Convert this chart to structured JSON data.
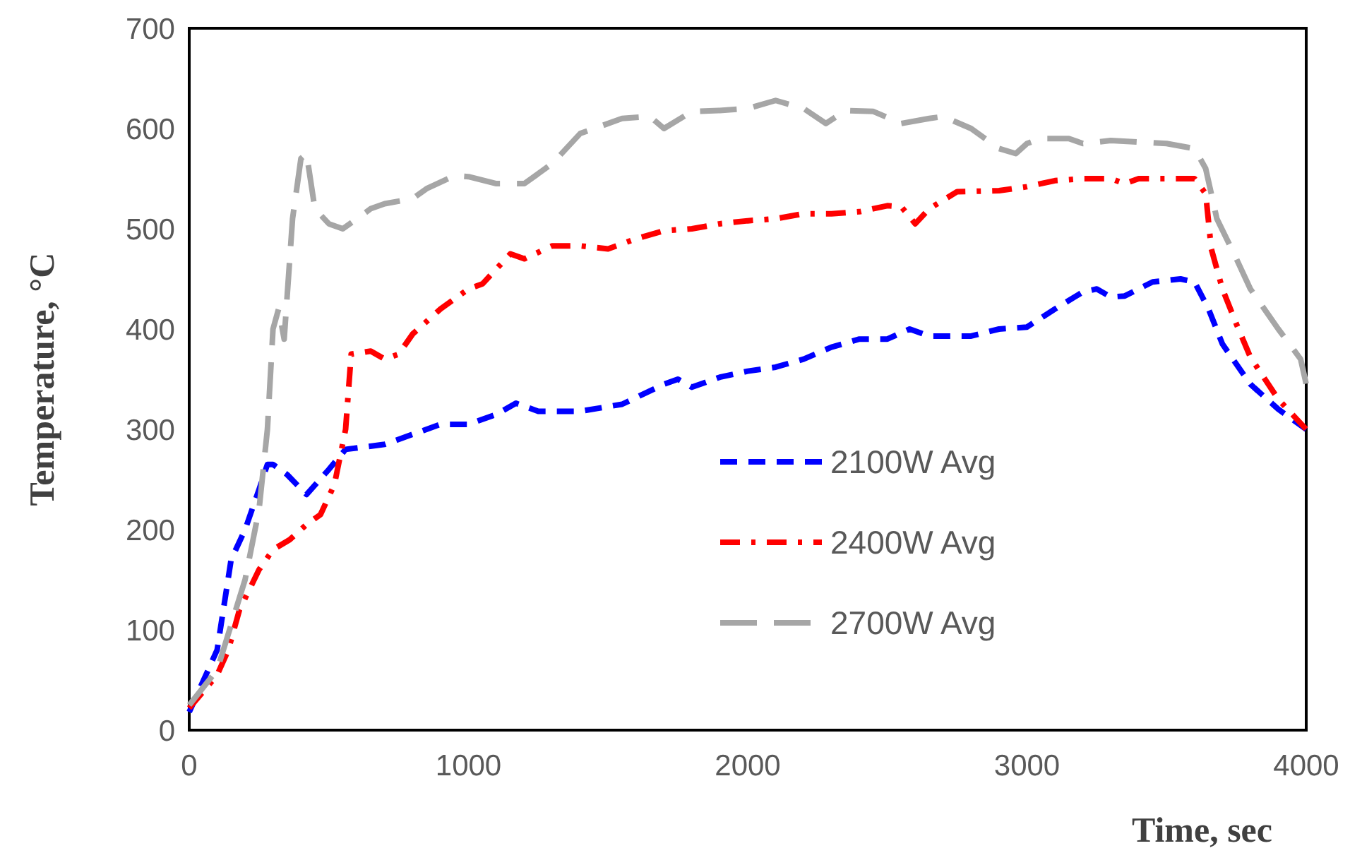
{
  "chart_data": {
    "type": "line",
    "xlabel": "Time, sec",
    "ylabel": "Temperature, °C",
    "xlim": [
      0,
      4000
    ],
    "xticks": [
      0,
      1000,
      2000,
      3000,
      4000
    ],
    "ylim": [
      0,
      700
    ],
    "yticks": [
      0,
      100,
      200,
      300,
      400,
      500,
      600,
      700
    ],
    "grid": false,
    "legend": "right",
    "marker": "none",
    "series": [
      {
        "name": "2100W Avg",
        "color": "#0000ff",
        "line_style": "dashed",
        "x": [
          0,
          100,
          150,
          200,
          250,
          280,
          300,
          350,
          420,
          500,
          560,
          700,
          800,
          900,
          1000,
          1100,
          1170,
          1250,
          1400,
          1550,
          1700,
          1750,
          1800,
          1900,
          2000,
          2100,
          2200,
          2300,
          2400,
          2500,
          2580,
          2650,
          2800,
          2900,
          3000,
          3100,
          3200,
          3250,
          3300,
          3350,
          3450,
          3550,
          3600,
          3650,
          3700,
          3800,
          3900,
          4000
        ],
        "values": [
          18,
          80,
          170,
          200,
          240,
          265,
          265,
          255,
          235,
          260,
          280,
          285,
          295,
          305,
          305,
          315,
          326,
          318,
          318,
          325,
          345,
          350,
          342,
          352,
          358,
          362,
          370,
          382,
          390,
          390,
          400,
          393,
          393,
          400,
          402,
          420,
          437,
          440,
          432,
          433,
          447,
          450,
          447,
          420,
          385,
          345,
          320,
          300
        ]
      },
      {
        "name": "2400W Avg",
        "color": "#ff0000",
        "line_style": "dashdot",
        "x": [
          0,
          100,
          140,
          180,
          250,
          300,
          360,
          420,
          470,
          520,
          560,
          580,
          650,
          700,
          750,
          800,
          900,
          1000,
          1050,
          1150,
          1200,
          1300,
          1400,
          1500,
          1600,
          1700,
          1800,
          1900,
          2000,
          2100,
          2200,
          2300,
          2400,
          2500,
          2550,
          2600,
          2650,
          2750,
          2900,
          3000,
          3100,
          3200,
          3300,
          3350,
          3400,
          3500,
          3600,
          3640,
          3660,
          3700,
          3750,
          3800,
          3900,
          4000
        ],
        "values": [
          22,
          55,
          80,
          120,
          160,
          180,
          190,
          205,
          215,
          245,
          300,
          375,
          378,
          370,
          375,
          395,
          420,
          440,
          445,
          475,
          470,
          483,
          483,
          480,
          490,
          498,
          500,
          505,
          508,
          510,
          515,
          515,
          517,
          523,
          522,
          505,
          520,
          537,
          538,
          542,
          548,
          550,
          550,
          545,
          550,
          550,
          550,
          535,
          480,
          440,
          405,
          372,
          330,
          300
        ]
      },
      {
        "name": "2700W Avg",
        "color": "#a6a6a6",
        "line_style": "longdash",
        "x": [
          0,
          100,
          200,
          250,
          280,
          300,
          320,
          340,
          370,
          400,
          420,
          450,
          500,
          550,
          650,
          700,
          800,
          850,
          950,
          1000,
          1100,
          1200,
          1300,
          1400,
          1550,
          1650,
          1700,
          1800,
          1900,
          2000,
          2100,
          2200,
          2280,
          2350,
          2450,
          2550,
          2650,
          2700,
          2800,
          2900,
          2960,
          3000,
          3050,
          3150,
          3200,
          3300,
          3500,
          3600,
          3640,
          3680,
          3750,
          3800,
          3900,
          3980,
          4000
        ],
        "values": [
          25,
          60,
          150,
          220,
          300,
          400,
          420,
          390,
          510,
          570,
          575,
          520,
          505,
          500,
          520,
          525,
          530,
          540,
          553,
          552,
          545,
          545,
          565,
          595,
          610,
          612,
          600,
          617,
          618,
          620,
          628,
          620,
          605,
          618,
          617,
          605,
          610,
          612,
          600,
          580,
          575,
          585,
          590,
          590,
          585,
          588,
          585,
          580,
          560,
          510,
          470,
          440,
          400,
          370,
          345
        ]
      }
    ]
  }
}
